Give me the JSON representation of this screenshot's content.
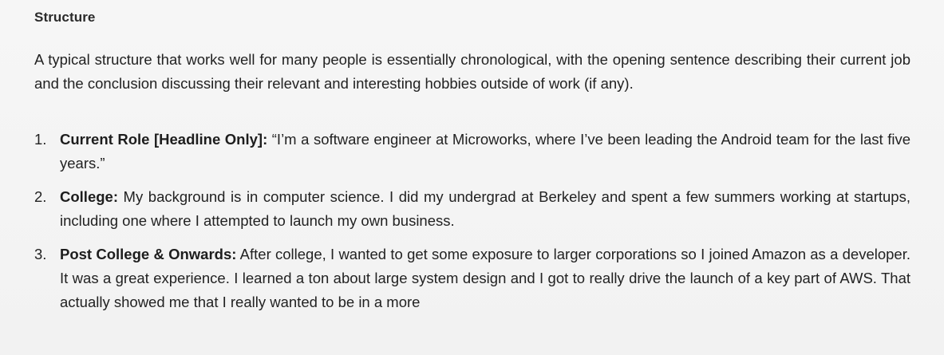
{
  "section": {
    "heading": "Structure",
    "intro": "A typical structure that works well for many people is essentially chronological, with the opening sentence describing their current job and the conclusion discussing their relevant and interesting hobbies outside of work (if any)."
  },
  "items": [
    {
      "number": "1.",
      "title": "Current Role [Headline Only]:",
      "text": " “I’m a software engineer at Microworks, where I’ve been leading the Android team for the last five years.”"
    },
    {
      "number": "2.",
      "title": "College:",
      "text": " My background is in computer science. I did my undergrad at Berkeley and spent a few summers working at startups, including one where I attempted to launch my own business."
    },
    {
      "number": "3.",
      "title": "Post College & Onwards:",
      "text": " After college, I wanted to get some exposure to larger corporations so I joined Amazon as a developer. It was a great experience. I learned a ton about large system design and I got to really drive the launch of a key part of AWS. That actually showed me that I really wanted to be in a more"
    }
  ]
}
